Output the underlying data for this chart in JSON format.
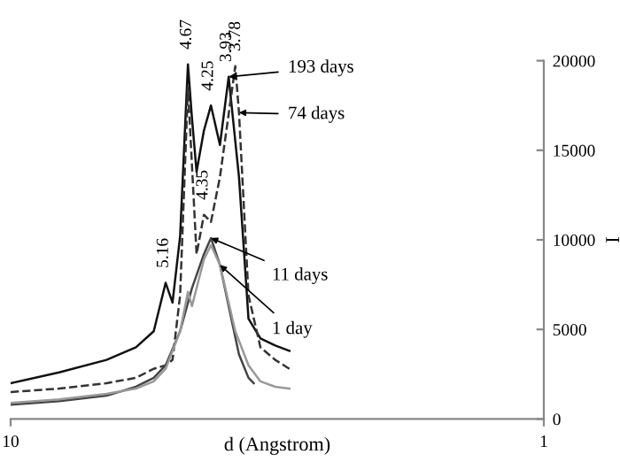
{
  "chart_data": {
    "type": "line",
    "xlabel": "d (Angstrom)",
    "ylabel": "I",
    "xlim": [
      10,
      1
    ],
    "xticks": [
      10,
      1
    ],
    "ylim": [
      0,
      20000
    ],
    "yticks": [
      0,
      5000,
      10000,
      15000,
      20000
    ],
    "log": "x",
    "grid": false,
    "legend": false,
    "series": [
      {
        "name": "193 days",
        "color": "#111111",
        "line_style": "solid",
        "x": [
          10,
          8.11,
          6.61,
          5.82,
          5.39,
          5.12,
          4.97,
          4.81,
          4.65,
          4.57,
          4.48,
          4.34,
          4.21,
          4.05,
          3.9,
          3.73,
          3.58,
          3.4,
          3.19,
          3.0
        ],
        "values": [
          2000,
          2600,
          3300,
          4000,
          4900,
          7600,
          6500,
          10200,
          19800,
          16800,
          13800,
          16100,
          17500,
          15300,
          19100,
          13500,
          5600,
          4500,
          4100,
          3800
        ]
      },
      {
        "name": "74 days",
        "color": "#333333",
        "line_style": "dashed",
        "x": [
          10,
          8.11,
          6.61,
          5.82,
          5.39,
          5.12,
          4.97,
          4.81,
          4.65,
          4.48,
          4.34,
          4.21,
          4.05,
          3.79,
          3.73,
          3.58,
          3.4,
          3.19,
          3.0
        ],
        "values": [
          1500,
          1700,
          2000,
          2300,
          2800,
          3000,
          3300,
          6900,
          18500,
          9200,
          11400,
          11000,
          13500,
          19700,
          17100,
          6900,
          4000,
          3300,
          2800
        ]
      },
      {
        "name": "11 days",
        "color": "#444444",
        "line_style": "solid",
        "x": [
          10,
          8.11,
          6.61,
          5.82,
          5.39,
          5.12,
          4.81,
          4.57,
          4.34,
          4.21,
          4.05,
          3.9,
          3.73,
          3.58,
          3.5
        ],
        "values": [
          800,
          1000,
          1300,
          1800,
          2300,
          3000,
          4900,
          7300,
          9200,
          10100,
          8600,
          6300,
          3600,
          2300,
          2000
        ]
      },
      {
        "name": "1 day",
        "color": "#999999",
        "line_style": "solid",
        "x": [
          10,
          8.11,
          6.61,
          5.82,
          5.39,
          5.12,
          4.81,
          4.65,
          4.57,
          4.34,
          4.21,
          4.05,
          3.79,
          3.58,
          3.4,
          3.19,
          3.0
        ],
        "values": [
          900,
          1100,
          1400,
          1700,
          2100,
          2800,
          4900,
          7100,
          6300,
          8900,
          9700,
          8600,
          4900,
          3000,
          2100,
          1800,
          1700
        ]
      }
    ],
    "annotations": [
      {
        "text": "4.67",
        "x": 4.67,
        "y": 19800
      },
      {
        "text": "4.25",
        "x": 4.25,
        "y": 17500
      },
      {
        "text": "3.93",
        "x": 3.93,
        "y": 19100
      },
      {
        "text": "3.78",
        "x": 3.78,
        "y": 19700
      },
      {
        "text": "5.16",
        "x": 5.16,
        "y": 7600
      },
      {
        "text": "4.35",
        "x": 4.35,
        "y": 11400
      }
    ]
  }
}
